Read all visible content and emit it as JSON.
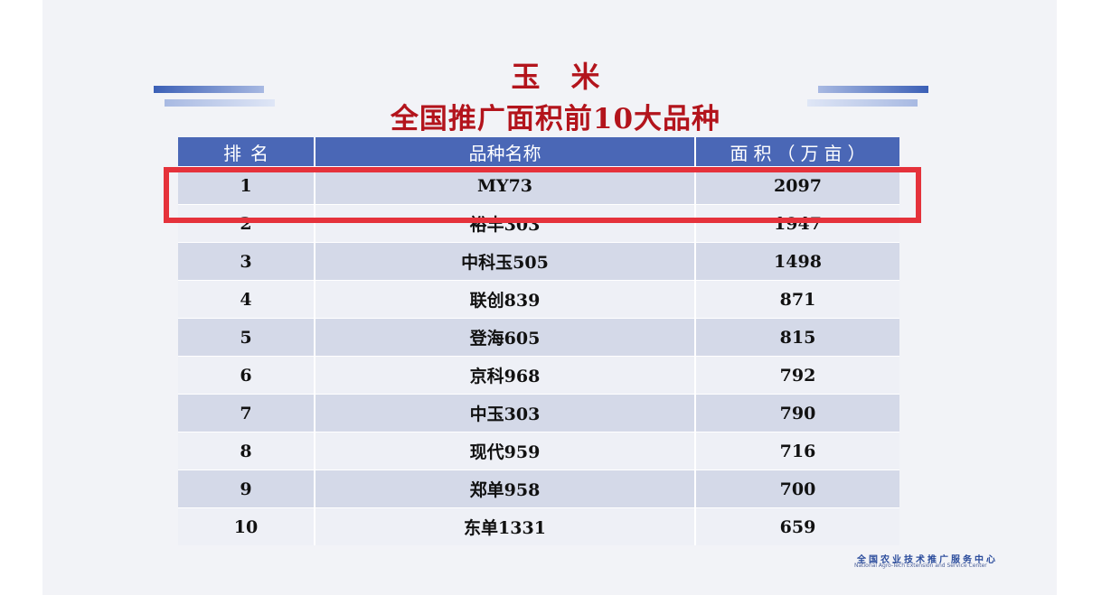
{
  "title_line1": "玉米",
  "title_line2": "全国推广面积前10大品种",
  "table": {
    "headers": [
      "排名",
      "品种名称",
      "面积（万亩）"
    ],
    "rows": [
      {
        "rank": "1",
        "variety": "MY73",
        "area": "2097"
      },
      {
        "rank": "2",
        "variety": "裕丰303",
        "area": "1947"
      },
      {
        "rank": "3",
        "variety": "中科玉505",
        "area": "1498"
      },
      {
        "rank": "4",
        "variety": "联创839",
        "area": "871"
      },
      {
        "rank": "5",
        "variety": "登海605",
        "area": "815"
      },
      {
        "rank": "6",
        "variety": "京科968",
        "area": "792"
      },
      {
        "rank": "7",
        "variety": "中玉303",
        "area": "790"
      },
      {
        "rank": "8",
        "variety": "现代959",
        "area": "716"
      },
      {
        "rank": "9",
        "variety": "郑单958",
        "area": "700"
      },
      {
        "rank": "10",
        "variety": "东单1331",
        "area": "659"
      }
    ]
  },
  "footer": {
    "org_cn": "全国农业技术推广服务中心",
    "org_en": "National Agro-Tech Extension and Service Center"
  },
  "colors": {
    "title": "#b3141c",
    "header_bg": "#4a67b6",
    "highlight_border": "#e5323b"
  }
}
